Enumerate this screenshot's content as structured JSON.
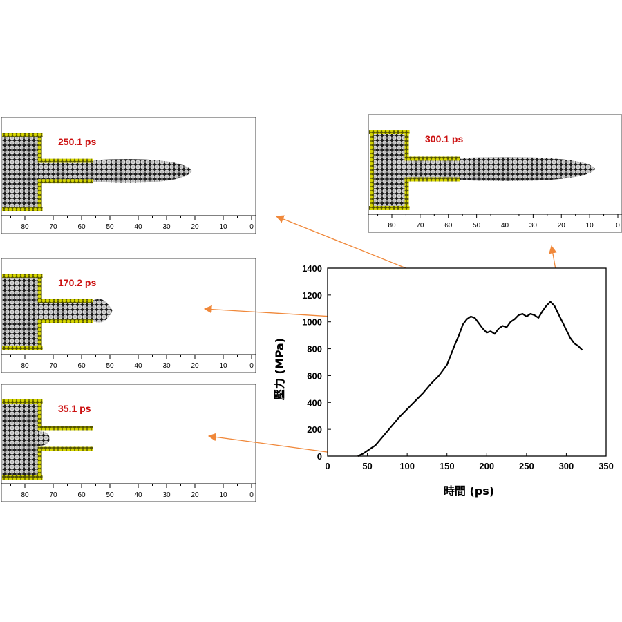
{
  "colors": {
    "label_red": "#cc1111",
    "wall_yellow": "#c8c800",
    "arrow_orange": "#f0883a",
    "curve": "#000000",
    "atom_fill": "#8a8a8a"
  },
  "snapshots": [
    {
      "id": "s250",
      "time_label": "250.1 ps",
      "ruler_labels": [
        "80",
        "70",
        "60",
        "50",
        "40",
        "30",
        "20",
        "10",
        "0"
      ],
      "jet_tip": 21,
      "t": 250.1
    },
    {
      "id": "s300",
      "time_label": "300.1 ps",
      "ruler_labels": [
        "80",
        "70",
        "60",
        "50",
        "40",
        "30",
        "20",
        "10",
        "0"
      ],
      "jet_tip": 8,
      "t": 300.1
    },
    {
      "id": "s170",
      "time_label": "170.2 ps",
      "ruler_labels": [
        "80",
        "70",
        "60",
        "50",
        "40",
        "30",
        "20",
        "10",
        "0"
      ],
      "jet_tip": 49,
      "t": 170.2
    },
    {
      "id": "s35",
      "time_label": "35.1 ps",
      "ruler_labels": [
        "80",
        "70",
        "60",
        "50",
        "40",
        "30",
        "20",
        "10",
        "0"
      ],
      "jet_tip": 72,
      "t": 35.1
    }
  ],
  "chart_data": {
    "type": "line",
    "xlabel": "時間 (ps)",
    "ylabel": "壓力 (MPa)",
    "xlim": [
      0,
      350
    ],
    "ylim": [
      0,
      1400
    ],
    "xticks": [
      "0",
      "50",
      "100",
      "150",
      "200",
      "250",
      "300",
      "350"
    ],
    "yticks": [
      "0",
      "200",
      "400",
      "600",
      "800",
      "1000",
      "1200",
      "1400"
    ],
    "series": [
      {
        "x": [
          38,
          45,
          50,
          55,
          60,
          70,
          80,
          90,
          100,
          110,
          120,
          130,
          140,
          150,
          160,
          165,
          170,
          175,
          180,
          185,
          190,
          195,
          200,
          205,
          210,
          215,
          220,
          225,
          230,
          235,
          240,
          245,
          250,
          255,
          260,
          265,
          270,
          275,
          280,
          285,
          290,
          295,
          300,
          305,
          310,
          315,
          320
        ],
        "y": [
          0,
          20,
          40,
          60,
          80,
          150,
          220,
          290,
          350,
          410,
          470,
          540,
          600,
          680,
          830,
          900,
          980,
          1020,
          1040,
          1030,
          990,
          950,
          920,
          930,
          910,
          950,
          970,
          960,
          1000,
          1020,
          1050,
          1060,
          1040,
          1060,
          1050,
          1030,
          1080,
          1120,
          1150,
          1120,
          1060,
          1000,
          940,
          880,
          840,
          820,
          790
        ]
      }
    ]
  }
}
